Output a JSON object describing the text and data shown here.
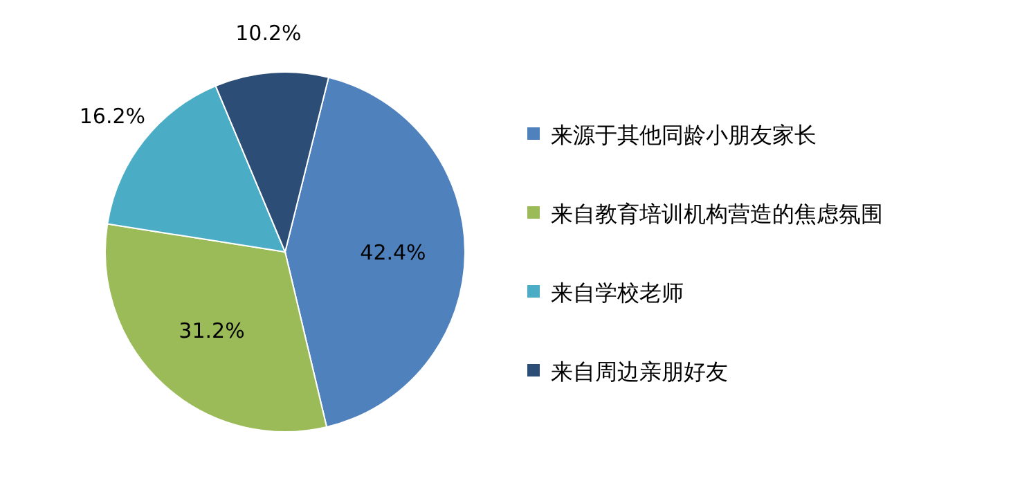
{
  "chart_data": {
    "type": "pie",
    "categories": [
      "来源于其他同龄小朋友家长",
      "来自教育培训机构营造的焦虑氛围",
      "来自学校老师",
      "来自周边亲朋好友"
    ],
    "values": [
      42.4,
      31.2,
      16.2,
      10.2
    ],
    "value_labels": [
      "42.4%",
      "31.2%",
      "16.2%",
      "10.2%"
    ],
    "colors": [
      "#4f81bd",
      "#9bbb59",
      "#4bacc6",
      "#2c4d75"
    ],
    "legend": "right"
  }
}
